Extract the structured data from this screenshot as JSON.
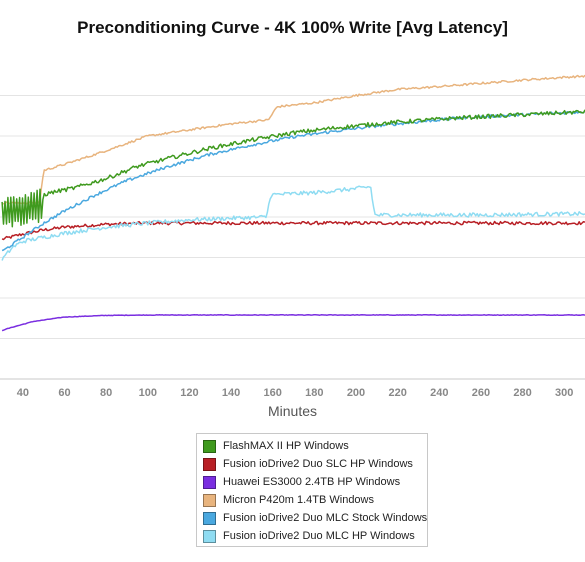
{
  "chart_data": {
    "type": "line",
    "title": "Preconditioning Curve - 4K 100% Write [Avg Latency]",
    "xlabel": "Minutes",
    "ylabel": "",
    "xlim": [
      29,
      310
    ],
    "ylim": [
      0,
      8
    ],
    "x_ticks": [
      40,
      60,
      80,
      100,
      120,
      140,
      160,
      180,
      200,
      220,
      240,
      260,
      280,
      300
    ],
    "y_ticks": [
      0,
      1,
      2,
      3,
      4,
      5,
      6,
      7
    ],
    "y_tick_labels_visible": false,
    "grid": "horizontal",
    "legend_position": "bottom",
    "series": [
      {
        "name": "FlashMAX II HP Windows",
        "color": "#3f9a1e",
        "noise": 0.05,
        "x": [
          30,
          49,
          50,
          55,
          65,
          80,
          95,
          110,
          130,
          150,
          170,
          190,
          210,
          230,
          250,
          270,
          290,
          310
        ],
        "y": [
          4.1,
          4.3,
          4.55,
          4.62,
          4.72,
          4.95,
          5.25,
          5.45,
          5.7,
          5.9,
          6.08,
          6.2,
          6.3,
          6.38,
          6.45,
          6.5,
          6.55,
          6.6
        ],
        "oscillation": {
          "x_range": [
            30,
            49
          ],
          "amplitude": 0.42
        }
      },
      {
        "name": "Fusion ioDrive2 Duo SLC HP Windows",
        "color": "#b81f25",
        "noise": 0.04,
        "x": [
          30,
          40,
          50,
          60,
          80,
          100,
          140,
          200,
          250,
          310
        ],
        "y": [
          3.45,
          3.58,
          3.68,
          3.75,
          3.82,
          3.85,
          3.85,
          3.85,
          3.85,
          3.85
        ]
      },
      {
        "name": "Huawei ES3000 2.4TB HP Windows",
        "color": "#7a2ee0",
        "noise": 0.006,
        "x": [
          30,
          35,
          45,
          60,
          80,
          100,
          150,
          200,
          250,
          310
        ],
        "y": [
          1.2,
          1.28,
          1.42,
          1.53,
          1.57,
          1.58,
          1.58,
          1.58,
          1.58,
          1.58
        ]
      },
      {
        "name": "Micron P420m 1.4TB Windows",
        "color": "#e8b47e",
        "noise": 0.025,
        "x": [
          30,
          48,
          50,
          60,
          75,
          100,
          120,
          140,
          158,
          162,
          180,
          200,
          220,
          240,
          260,
          280,
          300,
          310
        ],
        "y": [
          4.35,
          4.35,
          5.15,
          5.3,
          5.55,
          6.0,
          6.15,
          6.3,
          6.4,
          6.72,
          6.82,
          7.0,
          7.15,
          7.22,
          7.3,
          7.38,
          7.45,
          7.48
        ]
      },
      {
        "name": "Fusion ioDrive2 Duo MLC Stock Windows",
        "color": "#4aa8df",
        "noise": 0.035,
        "x": [
          30,
          40,
          50,
          60,
          75,
          90,
          110,
          130,
          150,
          170,
          190,
          210,
          230,
          250,
          270,
          290,
          310
        ],
        "y": [
          3.15,
          3.5,
          3.85,
          4.15,
          4.55,
          4.9,
          5.25,
          5.55,
          5.78,
          5.98,
          6.12,
          6.25,
          6.35,
          6.45,
          6.5,
          6.55,
          6.6
        ]
      },
      {
        "name": "Fusion ioDrive2 Duo MLC HP Windows",
        "color": "#8fdcf2",
        "noise": 0.05,
        "x": [
          30,
          35,
          40,
          60,
          80,
          100,
          120,
          140,
          157,
          159,
          180,
          200,
          207,
          209,
          230,
          260,
          310
        ],
        "y": [
          2.95,
          3.25,
          3.4,
          3.6,
          3.75,
          3.85,
          3.93,
          3.97,
          4.0,
          4.55,
          4.6,
          4.7,
          4.75,
          4.05,
          4.05,
          4.05,
          4.08
        ]
      }
    ]
  }
}
